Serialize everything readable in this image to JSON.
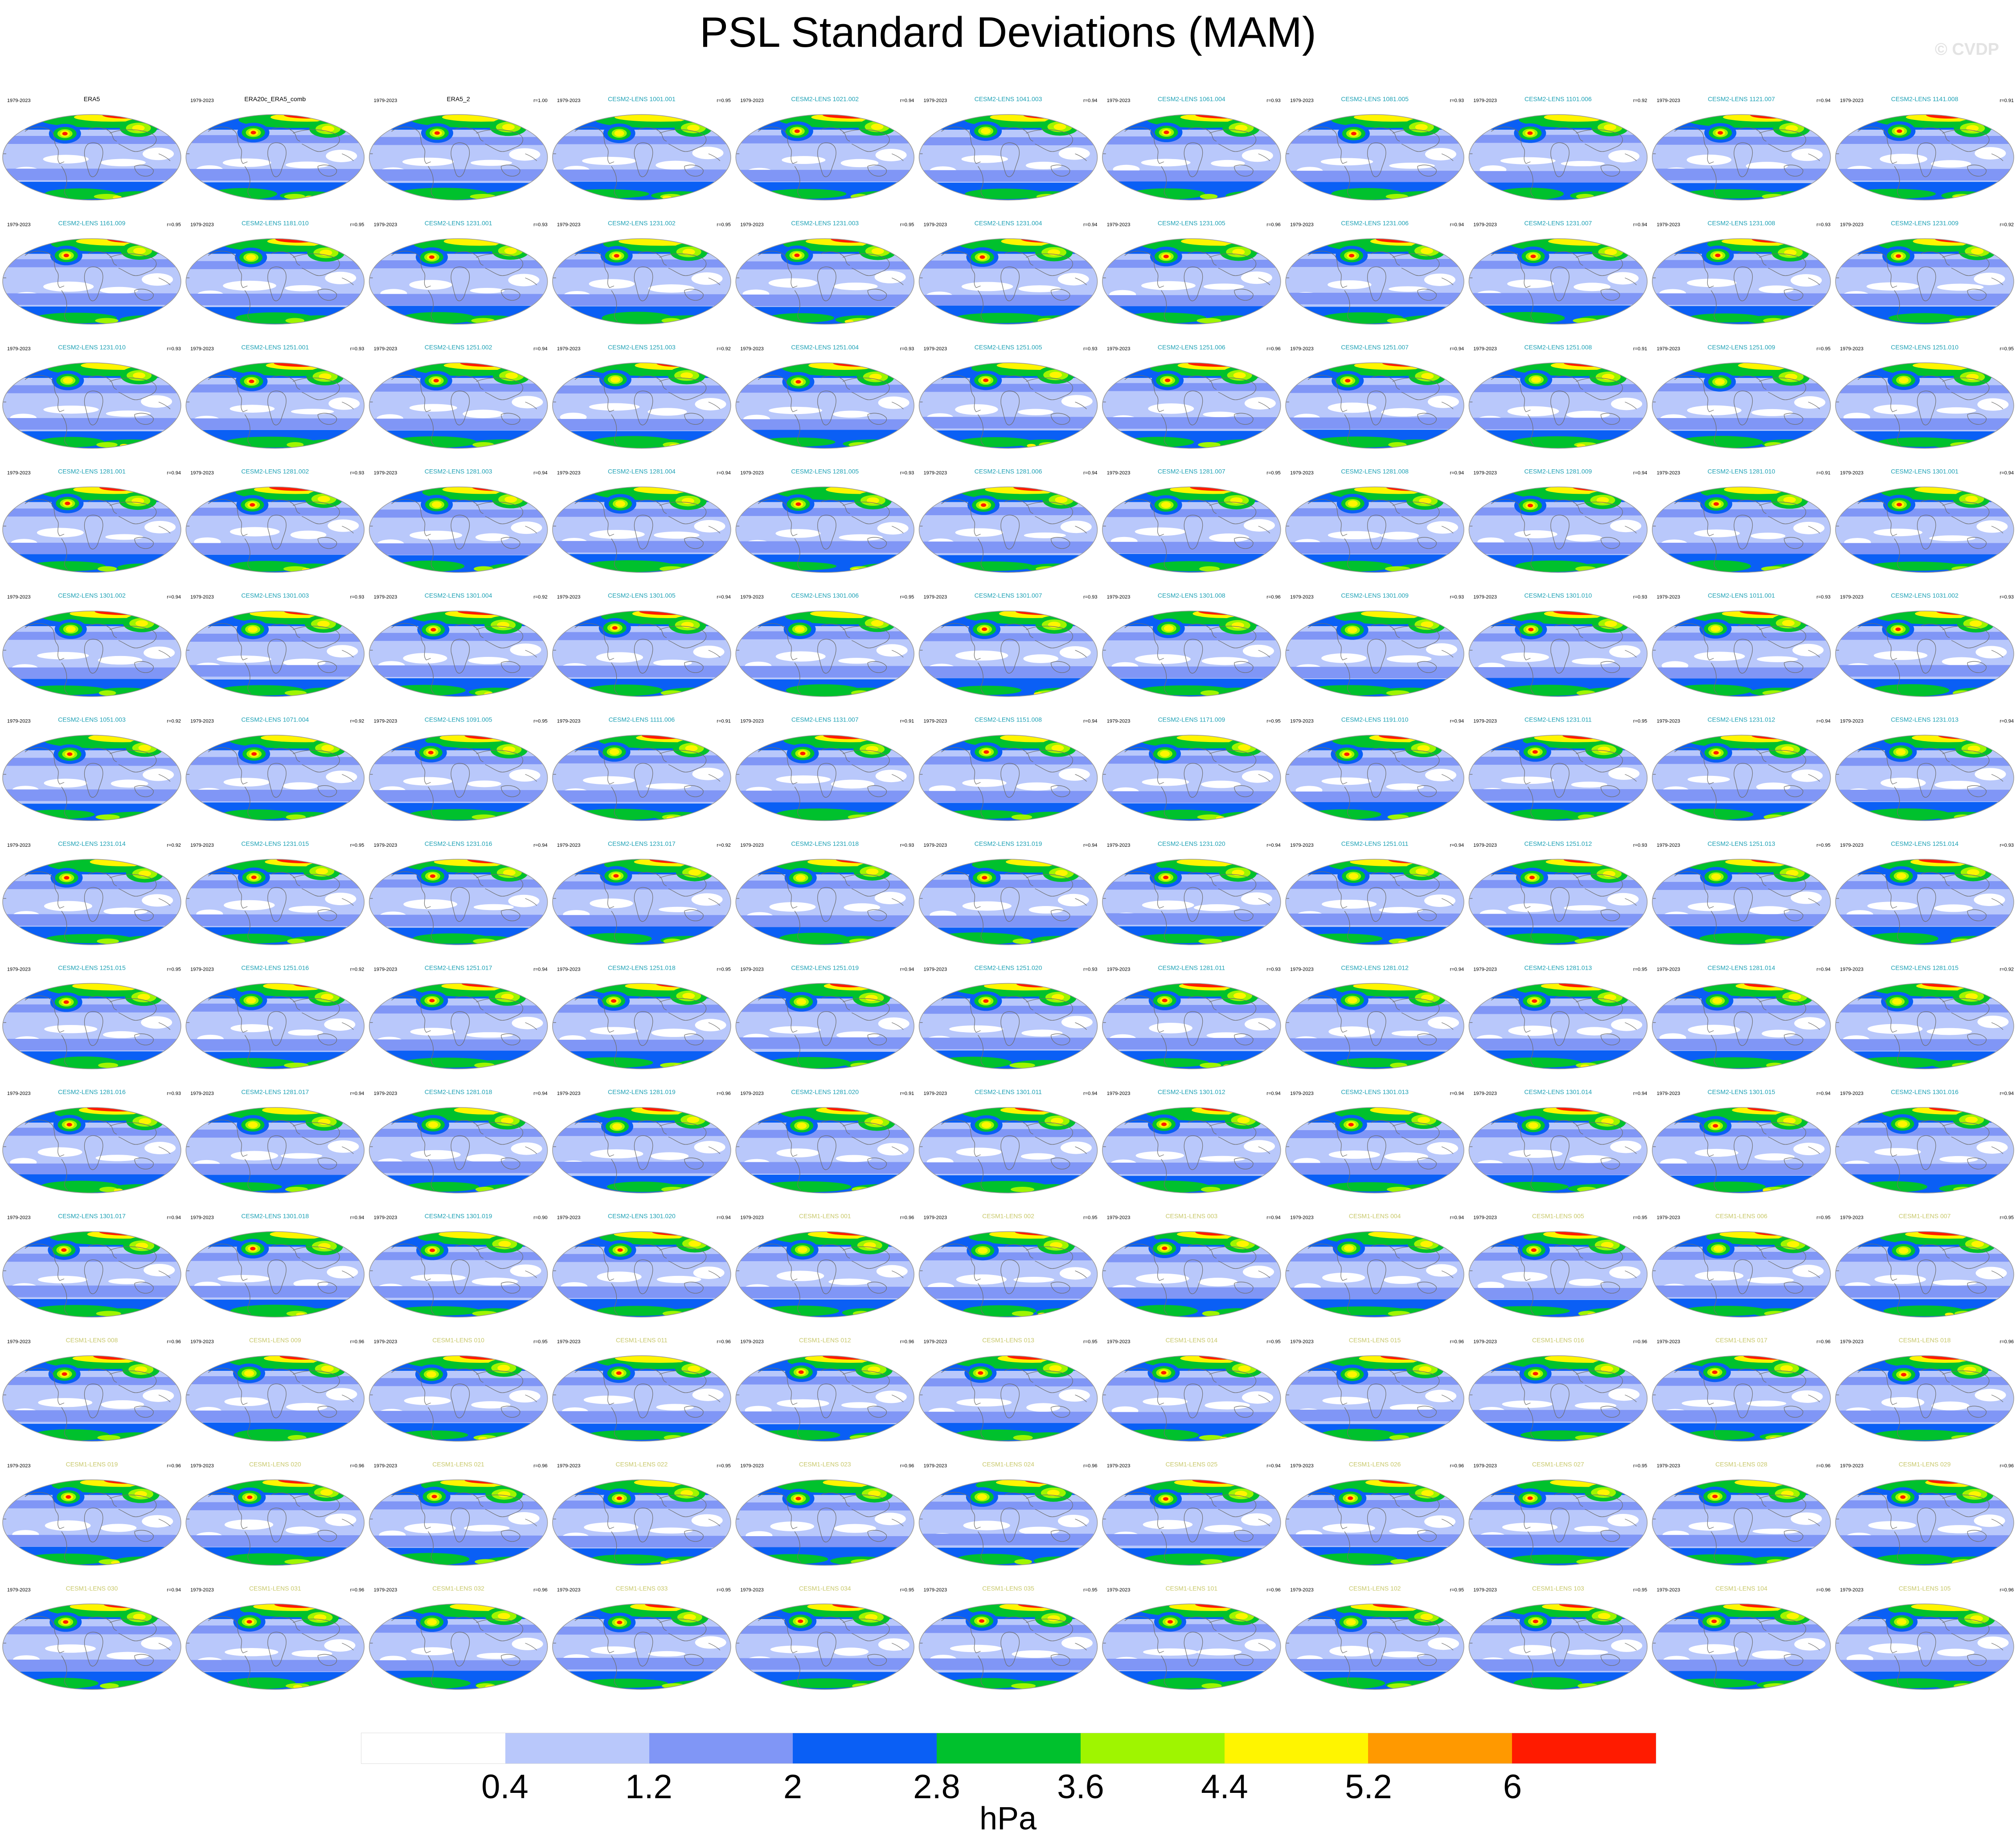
{
  "title": "PSL Standard Deviations (MAM)",
  "watermark": "© CVDP",
  "period": "1979-2023",
  "units": "hPa",
  "legend": {
    "ticks": [
      "0.4",
      "1.2",
      "2",
      "2.8",
      "3.6",
      "4.4",
      "5.2",
      "6"
    ],
    "colors": [
      "#ffffff",
      "#b9c8fb",
      "#8096f6",
      "#0a5ff5",
      "#00c12d",
      "#9ff500",
      "#fff500",
      "#ff9900",
      "#ff1b00"
    ]
  },
  "name_colors": {
    "observations": "#000000",
    "cesm2": "#1da1b5",
    "cesm1": "#c8c86a"
  },
  "panels": [
    {
      "name": "ERA5",
      "r": "",
      "group": "observations"
    },
    {
      "name": "ERA20c_ERA5_comb",
      "r": "",
      "group": "observations"
    },
    {
      "name": "ERA5_2",
      "r": "r=1.00",
      "group": "observations"
    },
    {
      "name": "CESM2-LENS 1001.001",
      "r": "r=0.95",
      "group": "cesm2"
    },
    {
      "name": "CESM2-LENS 1021.002",
      "r": "r=0.94",
      "group": "cesm2"
    },
    {
      "name": "CESM2-LENS 1041.003",
      "r": "r=0.94",
      "group": "cesm2"
    },
    {
      "name": "CESM2-LENS 1061.004",
      "r": "r=0.93",
      "group": "cesm2"
    },
    {
      "name": "CESM2-LENS 1081.005",
      "r": "r=0.93",
      "group": "cesm2"
    },
    {
      "name": "CESM2-LENS 1101.006",
      "r": "r=0.92",
      "group": "cesm2"
    },
    {
      "name": "CESM2-LENS 1121.007",
      "r": "r=0.94",
      "group": "cesm2"
    },
    {
      "name": "CESM2-LENS 1141.008",
      "r": "r=0.91",
      "group": "cesm2"
    },
    {
      "name": "CESM2-LENS 1161.009",
      "r": "r=0.95",
      "group": "cesm2"
    },
    {
      "name": "CESM2-LENS 1181.010",
      "r": "r=0.95",
      "group": "cesm2"
    },
    {
      "name": "CESM2-LENS 1231.001",
      "r": "r=0.93",
      "group": "cesm2"
    },
    {
      "name": "CESM2-LENS 1231.002",
      "r": "r=0.95",
      "group": "cesm2"
    },
    {
      "name": "CESM2-LENS 1231.003",
      "r": "r=0.95",
      "group": "cesm2"
    },
    {
      "name": "CESM2-LENS 1231.004",
      "r": "r=0.94",
      "group": "cesm2"
    },
    {
      "name": "CESM2-LENS 1231.005",
      "r": "r=0.96",
      "group": "cesm2"
    },
    {
      "name": "CESM2-LENS 1231.006",
      "r": "r=0.94",
      "group": "cesm2"
    },
    {
      "name": "CESM2-LENS 1231.007",
      "r": "r=0.94",
      "group": "cesm2"
    },
    {
      "name": "CESM2-LENS 1231.008",
      "r": "r=0.93",
      "group": "cesm2"
    },
    {
      "name": "CESM2-LENS 1231.009",
      "r": "r=0.92",
      "group": "cesm2"
    },
    {
      "name": "CESM2-LENS 1231.010",
      "r": "r=0.93",
      "group": "cesm2"
    },
    {
      "name": "CESM2-LENS 1251.001",
      "r": "r=0.93",
      "group": "cesm2"
    },
    {
      "name": "CESM2-LENS 1251.002",
      "r": "r=0.94",
      "group": "cesm2"
    },
    {
      "name": "CESM2-LENS 1251.003",
      "r": "r=0.92",
      "group": "cesm2"
    },
    {
      "name": "CESM2-LENS 1251.004",
      "r": "r=0.93",
      "group": "cesm2"
    },
    {
      "name": "CESM2-LENS 1251.005",
      "r": "r=0.93",
      "group": "cesm2"
    },
    {
      "name": "CESM2-LENS 1251.006",
      "r": "r=0.96",
      "group": "cesm2"
    },
    {
      "name": "CESM2-LENS 1251.007",
      "r": "r=0.94",
      "group": "cesm2"
    },
    {
      "name": "CESM2-LENS 1251.008",
      "r": "r=0.91",
      "group": "cesm2"
    },
    {
      "name": "CESM2-LENS 1251.009",
      "r": "r=0.95",
      "group": "cesm2"
    },
    {
      "name": "CESM2-LENS 1251.010",
      "r": "r=0.95",
      "group": "cesm2"
    },
    {
      "name": "CESM2-LENS 1281.001",
      "r": "r=0.94",
      "group": "cesm2"
    },
    {
      "name": "CESM2-LENS 1281.002",
      "r": "r=0.93",
      "group": "cesm2"
    },
    {
      "name": "CESM2-LENS 1281.003",
      "r": "r=0.94",
      "group": "cesm2"
    },
    {
      "name": "CESM2-LENS 1281.004",
      "r": "r=0.94",
      "group": "cesm2"
    },
    {
      "name": "CESM2-LENS 1281.005",
      "r": "r=0.93",
      "group": "cesm2"
    },
    {
      "name": "CESM2-LENS 1281.006",
      "r": "r=0.94",
      "group": "cesm2"
    },
    {
      "name": "CESM2-LENS 1281.007",
      "r": "r=0.95",
      "group": "cesm2"
    },
    {
      "name": "CESM2-LENS 1281.008",
      "r": "r=0.94",
      "group": "cesm2"
    },
    {
      "name": "CESM2-LENS 1281.009",
      "r": "r=0.94",
      "group": "cesm2"
    },
    {
      "name": "CESM2-LENS 1281.010",
      "r": "r=0.91",
      "group": "cesm2"
    },
    {
      "name": "CESM2-LENS 1301.001",
      "r": "r=0.94",
      "group": "cesm2"
    },
    {
      "name": "CESM2-LENS 1301.002",
      "r": "r=0.94",
      "group": "cesm2"
    },
    {
      "name": "CESM2-LENS 1301.003",
      "r": "r=0.93",
      "group": "cesm2"
    },
    {
      "name": "CESM2-LENS 1301.004",
      "r": "r=0.92",
      "group": "cesm2"
    },
    {
      "name": "CESM2-LENS 1301.005",
      "r": "r=0.94",
      "group": "cesm2"
    },
    {
      "name": "CESM2-LENS 1301.006",
      "r": "r=0.95",
      "group": "cesm2"
    },
    {
      "name": "CESM2-LENS 1301.007",
      "r": "r=0.93",
      "group": "cesm2"
    },
    {
      "name": "CESM2-LENS 1301.008",
      "r": "r=0.96",
      "group": "cesm2"
    },
    {
      "name": "CESM2-LENS 1301.009",
      "r": "r=0.93",
      "group": "cesm2"
    },
    {
      "name": "CESM2-LENS 1301.010",
      "r": "r=0.93",
      "group": "cesm2"
    },
    {
      "name": "CESM2-LENS 1011.001",
      "r": "r=0.93",
      "group": "cesm2"
    },
    {
      "name": "CESM2-LENS 1031.002",
      "r": "r=0.93",
      "group": "cesm2"
    },
    {
      "name": "CESM2-LENS 1051.003",
      "r": "r=0.92",
      "group": "cesm2"
    },
    {
      "name": "CESM2-LENS 1071.004",
      "r": "r=0.92",
      "group": "cesm2"
    },
    {
      "name": "CESM2-LENS 1091.005",
      "r": "r=0.95",
      "group": "cesm2"
    },
    {
      "name": "CESM2-LENS 1111.006",
      "r": "r=0.91",
      "group": "cesm2"
    },
    {
      "name": "CESM2-LENS 1131.007",
      "r": "r=0.91",
      "group": "cesm2"
    },
    {
      "name": "CESM2-LENS 1151.008",
      "r": "r=0.94",
      "group": "cesm2"
    },
    {
      "name": "CESM2-LENS 1171.009",
      "r": "r=0.95",
      "group": "cesm2"
    },
    {
      "name": "CESM2-LENS 1191.010",
      "r": "r=0.94",
      "group": "cesm2"
    },
    {
      "name": "CESM2-LENS 1231.011",
      "r": "r=0.95",
      "group": "cesm2"
    },
    {
      "name": "CESM2-LENS 1231.012",
      "r": "r=0.94",
      "group": "cesm2"
    },
    {
      "name": "CESM2-LENS 1231.013",
      "r": "r=0.94",
      "group": "cesm2"
    },
    {
      "name": "CESM2-LENS 1231.014",
      "r": "r=0.92",
      "group": "cesm2"
    },
    {
      "name": "CESM2-LENS 1231.015",
      "r": "r=0.95",
      "group": "cesm2"
    },
    {
      "name": "CESM2-LENS 1231.016",
      "r": "r=0.94",
      "group": "cesm2"
    },
    {
      "name": "CESM2-LENS 1231.017",
      "r": "r=0.92",
      "group": "cesm2"
    },
    {
      "name": "CESM2-LENS 1231.018",
      "r": "r=0.93",
      "group": "cesm2"
    },
    {
      "name": "CESM2-LENS 1231.019",
      "r": "r=0.94",
      "group": "cesm2"
    },
    {
      "name": "CESM2-LENS 1231.020",
      "r": "r=0.94",
      "group": "cesm2"
    },
    {
      "name": "CESM2-LENS 1251.011",
      "r": "r=0.94",
      "group": "cesm2"
    },
    {
      "name": "CESM2-LENS 1251.012",
      "r": "r=0.93",
      "group": "cesm2"
    },
    {
      "name": "CESM2-LENS 1251.013",
      "r": "r=0.95",
      "group": "cesm2"
    },
    {
      "name": "CESM2-LENS 1251.014",
      "r": "r=0.93",
      "group": "cesm2"
    },
    {
      "name": "CESM2-LENS 1251.015",
      "r": "r=0.95",
      "group": "cesm2"
    },
    {
      "name": "CESM2-LENS 1251.016",
      "r": "r=0.92",
      "group": "cesm2"
    },
    {
      "name": "CESM2-LENS 1251.017",
      "r": "r=0.94",
      "group": "cesm2"
    },
    {
      "name": "CESM2-LENS 1251.018",
      "r": "r=0.95",
      "group": "cesm2"
    },
    {
      "name": "CESM2-LENS 1251.019",
      "r": "r=0.94",
      "group": "cesm2"
    },
    {
      "name": "CESM2-LENS 1251.020",
      "r": "r=0.93",
      "group": "cesm2"
    },
    {
      "name": "CESM2-LENS 1281.011",
      "r": "r=0.93",
      "group": "cesm2"
    },
    {
      "name": "CESM2-LENS 1281.012",
      "r": "r=0.94",
      "group": "cesm2"
    },
    {
      "name": "CESM2-LENS 1281.013",
      "r": "r=0.95",
      "group": "cesm2"
    },
    {
      "name": "CESM2-LENS 1281.014",
      "r": "r=0.94",
      "group": "cesm2"
    },
    {
      "name": "CESM2-LENS 1281.015",
      "r": "r=0.92",
      "group": "cesm2"
    },
    {
      "name": "CESM2-LENS 1281.016",
      "r": "r=0.93",
      "group": "cesm2"
    },
    {
      "name": "CESM2-LENS 1281.017",
      "r": "r=0.94",
      "group": "cesm2"
    },
    {
      "name": "CESM2-LENS 1281.018",
      "r": "r=0.94",
      "group": "cesm2"
    },
    {
      "name": "CESM2-LENS 1281.019",
      "r": "r=0.96",
      "group": "cesm2"
    },
    {
      "name": "CESM2-LENS 1281.020",
      "r": "r=0.91",
      "group": "cesm2"
    },
    {
      "name": "CESM2-LENS 1301.011",
      "r": "r=0.94",
      "group": "cesm2"
    },
    {
      "name": "CESM2-LENS 1301.012",
      "r": "r=0.94",
      "group": "cesm2"
    },
    {
      "name": "CESM2-LENS 1301.013",
      "r": "r=0.94",
      "group": "cesm2"
    },
    {
      "name": "CESM2-LENS 1301.014",
      "r": "r=0.94",
      "group": "cesm2"
    },
    {
      "name": "CESM2-LENS 1301.015",
      "r": "r=0.94",
      "group": "cesm2"
    },
    {
      "name": "CESM2-LENS 1301.016",
      "r": "r=0.94",
      "group": "cesm2"
    },
    {
      "name": "CESM2-LENS 1301.017",
      "r": "r=0.94",
      "group": "cesm2"
    },
    {
      "name": "CESM2-LENS 1301.018",
      "r": "r=0.94",
      "group": "cesm2"
    },
    {
      "name": "CESM2-LENS 1301.019",
      "r": "r=0.90",
      "group": "cesm2"
    },
    {
      "name": "CESM2-LENS 1301.020",
      "r": "r=0.94",
      "group": "cesm2"
    },
    {
      "name": "CESM1-LENS 001",
      "r": "r=0.96",
      "group": "cesm1"
    },
    {
      "name": "CESM1-LENS 002",
      "r": "r=0.95",
      "group": "cesm1"
    },
    {
      "name": "CESM1-LENS 003",
      "r": "r=0.94",
      "group": "cesm1"
    },
    {
      "name": "CESM1-LENS 004",
      "r": "r=0.94",
      "group": "cesm1"
    },
    {
      "name": "CESM1-LENS 005",
      "r": "r=0.95",
      "group": "cesm1"
    },
    {
      "name": "CESM1-LENS 006",
      "r": "r=0.95",
      "group": "cesm1"
    },
    {
      "name": "CESM1-LENS 007",
      "r": "r=0.95",
      "group": "cesm1"
    },
    {
      "name": "CESM1-LENS 008",
      "r": "r=0.96",
      "group": "cesm1"
    },
    {
      "name": "CESM1-LENS 009",
      "r": "r=0.96",
      "group": "cesm1"
    },
    {
      "name": "CESM1-LENS 010",
      "r": "r=0.95",
      "group": "cesm1"
    },
    {
      "name": "CESM1-LENS 011",
      "r": "r=0.96",
      "group": "cesm1"
    },
    {
      "name": "CESM1-LENS 012",
      "r": "r=0.96",
      "group": "cesm1"
    },
    {
      "name": "CESM1-LENS 013",
      "r": "r=0.95",
      "group": "cesm1"
    },
    {
      "name": "CESM1-LENS 014",
      "r": "r=0.95",
      "group": "cesm1"
    },
    {
      "name": "CESM1-LENS 015",
      "r": "r=0.96",
      "group": "cesm1"
    },
    {
      "name": "CESM1-LENS 016",
      "r": "r=0.96",
      "group": "cesm1"
    },
    {
      "name": "CESM1-LENS 017",
      "r": "r=0.96",
      "group": "cesm1"
    },
    {
      "name": "CESM1-LENS 018",
      "r": "r=0.96",
      "group": "cesm1"
    },
    {
      "name": "CESM1-LENS 019",
      "r": "r=0.96",
      "group": "cesm1"
    },
    {
      "name": "CESM1-LENS 020",
      "r": "r=0.96",
      "group": "cesm1"
    },
    {
      "name": "CESM1-LENS 021",
      "r": "r=0.96",
      "group": "cesm1"
    },
    {
      "name": "CESM1-LENS 022",
      "r": "r=0.95",
      "group": "cesm1"
    },
    {
      "name": "CESM1-LENS 023",
      "r": "r=0.96",
      "group": "cesm1"
    },
    {
      "name": "CESM1-LENS 024",
      "r": "r=0.96",
      "group": "cesm1"
    },
    {
      "name": "CESM1-LENS 025",
      "r": "r=0.94",
      "group": "cesm1"
    },
    {
      "name": "CESM1-LENS 026",
      "r": "r=0.96",
      "group": "cesm1"
    },
    {
      "name": "CESM1-LENS 027",
      "r": "r=0.95",
      "group": "cesm1"
    },
    {
      "name": "CESM1-LENS 028",
      "r": "r=0.96",
      "group": "cesm1"
    },
    {
      "name": "CESM1-LENS 029",
      "r": "r=0.96",
      "group": "cesm1"
    },
    {
      "name": "CESM1-LENS 030",
      "r": "r=0.94",
      "group": "cesm1"
    },
    {
      "name": "CESM1-LENS 031",
      "r": "r=0.96",
      "group": "cesm1"
    },
    {
      "name": "CESM1-LENS 032",
      "r": "r=0.96",
      "group": "cesm1"
    },
    {
      "name": "CESM1-LENS 033",
      "r": "r=0.95",
      "group": "cesm1"
    },
    {
      "name": "CESM1-LENS 034",
      "r": "r=0.95",
      "group": "cesm1"
    },
    {
      "name": "CESM1-LENS 035",
      "r": "r=0.95",
      "group": "cesm1"
    },
    {
      "name": "CESM1-LENS 101",
      "r": "r=0.96",
      "group": "cesm1"
    },
    {
      "name": "CESM1-LENS 102",
      "r": "r=0.95",
      "group": "cesm1"
    },
    {
      "name": "CESM1-LENS 103",
      "r": "r=0.95",
      "group": "cesm1"
    },
    {
      "name": "CESM1-LENS 104",
      "r": "r=0.96",
      "group": "cesm1"
    },
    {
      "name": "CESM1-LENS 105",
      "r": "r=0.96",
      "group": "cesm1"
    }
  ]
}
